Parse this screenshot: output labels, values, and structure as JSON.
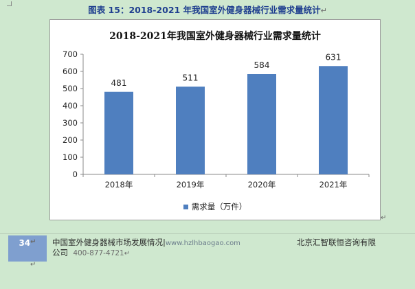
{
  "caption": {
    "text": "图表 15：2018-2021 年我国室外健身器械行业需求量统计",
    "return_mark": "↵"
  },
  "chart_data": {
    "type": "bar",
    "title": "2018-2021年我国室外健身器械行业需求量统计",
    "categories": [
      "2018年",
      "2019年",
      "2020年",
      "2021年"
    ],
    "series": [
      {
        "name": "需求量（万件）",
        "values": [
          481,
          511,
          584,
          631
        ],
        "color": "#4f7fbf"
      }
    ],
    "data_labels": [
      "481",
      "511",
      "584",
      "631"
    ],
    "ylim": [
      0,
      700
    ],
    "yticks": [
      "0",
      "100",
      "200",
      "300",
      "400",
      "500",
      "600",
      "700"
    ],
    "grid": false,
    "legend": "bottom"
  },
  "chart_box": {
    "return_mark": "↵"
  },
  "footer": {
    "page_number": "34",
    "page_return": "↵",
    "report_title": "中国室外健身器械市场发展情况",
    "separator": "|",
    "url": "www.hzlhbaogao.com",
    "company_line1": "北京汇智联恒咨询有限",
    "company_line2": "公司",
    "phone": "400-877-4721",
    "return_mark": "↵"
  }
}
